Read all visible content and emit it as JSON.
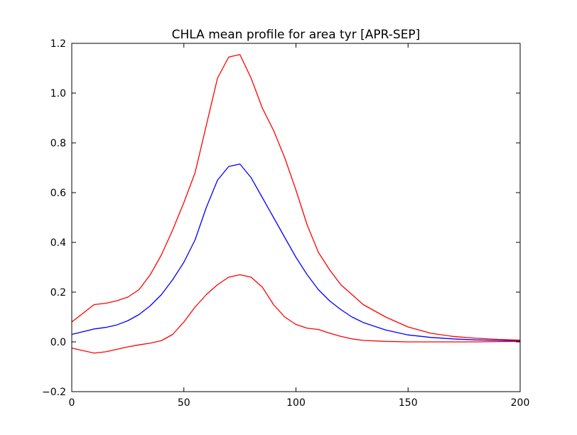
{
  "chart_data": {
    "type": "line",
    "title": "CHLA mean profile for area tyr [APR-SEP]",
    "xlabel": "",
    "ylabel": "",
    "xlim": [
      0,
      200
    ],
    "ylim": [
      -0.2,
      1.2
    ],
    "xticks": [
      0,
      50,
      100,
      150,
      200
    ],
    "yticks": [
      -0.2,
      0.0,
      0.2,
      0.4,
      0.6,
      0.8,
      1.0,
      1.2
    ],
    "xtick_labels": [
      "0",
      "50",
      "100",
      "150",
      "200"
    ],
    "ytick_labels": [
      "−0.2",
      "0.0",
      "0.2",
      "0.4",
      "0.6",
      "0.8",
      "1.0",
      "1.2"
    ],
    "grid": false,
    "series": [
      {
        "color": "#ff0000",
        "x": [
          0,
          10,
          15,
          20,
          25,
          30,
          35,
          40,
          45,
          50,
          55,
          60,
          65,
          70,
          75,
          80,
          85,
          90,
          95,
          100,
          105,
          110,
          115,
          120,
          125,
          130,
          140,
          150,
          160,
          170,
          180,
          190,
          200
        ],
        "y": [
          0.08,
          0.15,
          0.155,
          0.165,
          0.18,
          0.21,
          0.27,
          0.35,
          0.45,
          0.56,
          0.68,
          0.87,
          1.06,
          1.145,
          1.155,
          1.06,
          0.94,
          0.85,
          0.74,
          0.61,
          0.47,
          0.36,
          0.29,
          0.23,
          0.19,
          0.15,
          0.1,
          0.06,
          0.035,
          0.022,
          0.015,
          0.01,
          0.007
        ]
      },
      {
        "color": "#0000ff",
        "x": [
          0,
          10,
          15,
          20,
          25,
          30,
          35,
          40,
          45,
          50,
          55,
          60,
          65,
          70,
          75,
          80,
          85,
          90,
          95,
          100,
          105,
          110,
          115,
          120,
          125,
          130,
          140,
          150,
          160,
          170,
          180,
          190,
          200
        ],
        "y": [
          0.03,
          0.052,
          0.058,
          0.068,
          0.085,
          0.11,
          0.145,
          0.19,
          0.25,
          0.32,
          0.41,
          0.54,
          0.65,
          0.705,
          0.715,
          0.66,
          0.58,
          0.5,
          0.42,
          0.34,
          0.27,
          0.21,
          0.165,
          0.13,
          0.1,
          0.078,
          0.048,
          0.028,
          0.018,
          0.012,
          0.008,
          0.006,
          0.004
        ]
      },
      {
        "color": "#ff0000",
        "x": [
          0,
          10,
          15,
          20,
          25,
          30,
          35,
          40,
          45,
          50,
          55,
          60,
          65,
          70,
          75,
          80,
          85,
          90,
          95,
          100,
          105,
          110,
          115,
          120,
          125,
          130,
          140,
          150,
          160,
          170,
          180,
          190,
          200
        ],
        "y": [
          -0.025,
          -0.045,
          -0.04,
          -0.03,
          -0.02,
          -0.012,
          -0.005,
          0.005,
          0.03,
          0.08,
          0.14,
          0.19,
          0.23,
          0.26,
          0.27,
          0.26,
          0.22,
          0.15,
          0.1,
          0.07,
          0.055,
          0.05,
          0.035,
          0.022,
          0.012,
          0.006,
          0.002,
          0.0,
          0.0,
          0.0,
          0.0,
          0.001,
          0.002
        ]
      }
    ]
  }
}
